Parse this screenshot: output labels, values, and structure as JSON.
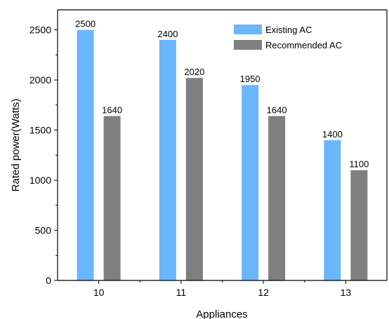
{
  "chart_data": {
    "type": "bar",
    "xlabel": "Appliances",
    "ylabel": "Rated power(Watts)",
    "categories": [
      "10",
      "11",
      "12",
      "13"
    ],
    "ylim": [
      0,
      2700
    ],
    "yticks": [
      0,
      500,
      1000,
      1500,
      2000,
      2500
    ],
    "grid": false,
    "legend_position": "top-right",
    "series": [
      {
        "name": "Existing AC",
        "color": "#6AB7FF",
        "values": [
          2500,
          2400,
          1950,
          1400
        ],
        "labels": [
          "2500",
          "2400",
          "1950",
          "1400"
        ]
      },
      {
        "name": "Recommended AC",
        "color": "#7F7F7F",
        "values": [
          1640,
          2020,
          1640,
          1100
        ],
        "labels": [
          "1640",
          "2020",
          "1640",
          "1100"
        ]
      }
    ]
  }
}
